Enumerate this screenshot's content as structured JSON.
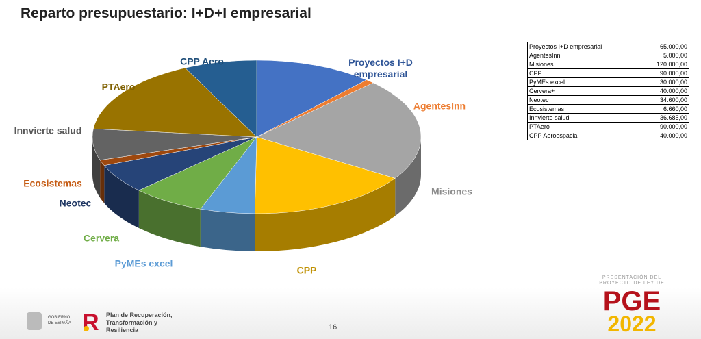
{
  "chart_data": {
    "type": "pie3d",
    "title": "Reparto presupuestario: I+D+I empresarial",
    "categories": [
      "Proyectos I+D empresarial",
      "AgentesInn",
      "Misiones",
      "CPP",
      "PyMEs excel",
      "Cervera",
      "Neotec",
      "Ecosistemas",
      "Innvierte salud",
      "PTAero",
      "CPP Aero"
    ],
    "values": [
      65000,
      5000,
      120000,
      90000,
      30000,
      40000,
      34600,
      6660,
      36685,
      90000,
      40000
    ],
    "colors": [
      "#4472c4",
      "#ed7d31",
      "#a5a5a5",
      "#ffc000",
      "#5b9bd5",
      "#70ad47",
      "#264478",
      "#9e480e",
      "#636363",
      "#997300",
      "#255e91"
    ]
  },
  "table": {
    "rows": [
      [
        "Proyectos I+D empresarial",
        "65.000,00"
      ],
      [
        "AgentesInn",
        "5.000,00"
      ],
      [
        "Misiones",
        "120.000,00"
      ],
      [
        "CPP",
        "90.000,00"
      ],
      [
        "PyMEs excel",
        "30.000,00"
      ],
      [
        "Cervera+",
        "40.000,00"
      ],
      [
        "Neotec",
        "34.600,00"
      ],
      [
        "Ecosistemas",
        "6.660,00"
      ],
      [
        "Innvierte salud",
        "36.685,00"
      ],
      [
        "PTAero",
        "90.000,00"
      ],
      [
        "CPP Aeroespacial",
        "40.000,00"
      ]
    ]
  },
  "footer": {
    "page": "16",
    "gov": "GOBIERNO DE ESPAÑA",
    "plan": "Plan de Recuperación, Transformación y Resiliencia",
    "pge_caption": "PRESENTACIÓN DEL PROYECTO DE LEY DE",
    "pge": "PGE",
    "year": "2022"
  }
}
